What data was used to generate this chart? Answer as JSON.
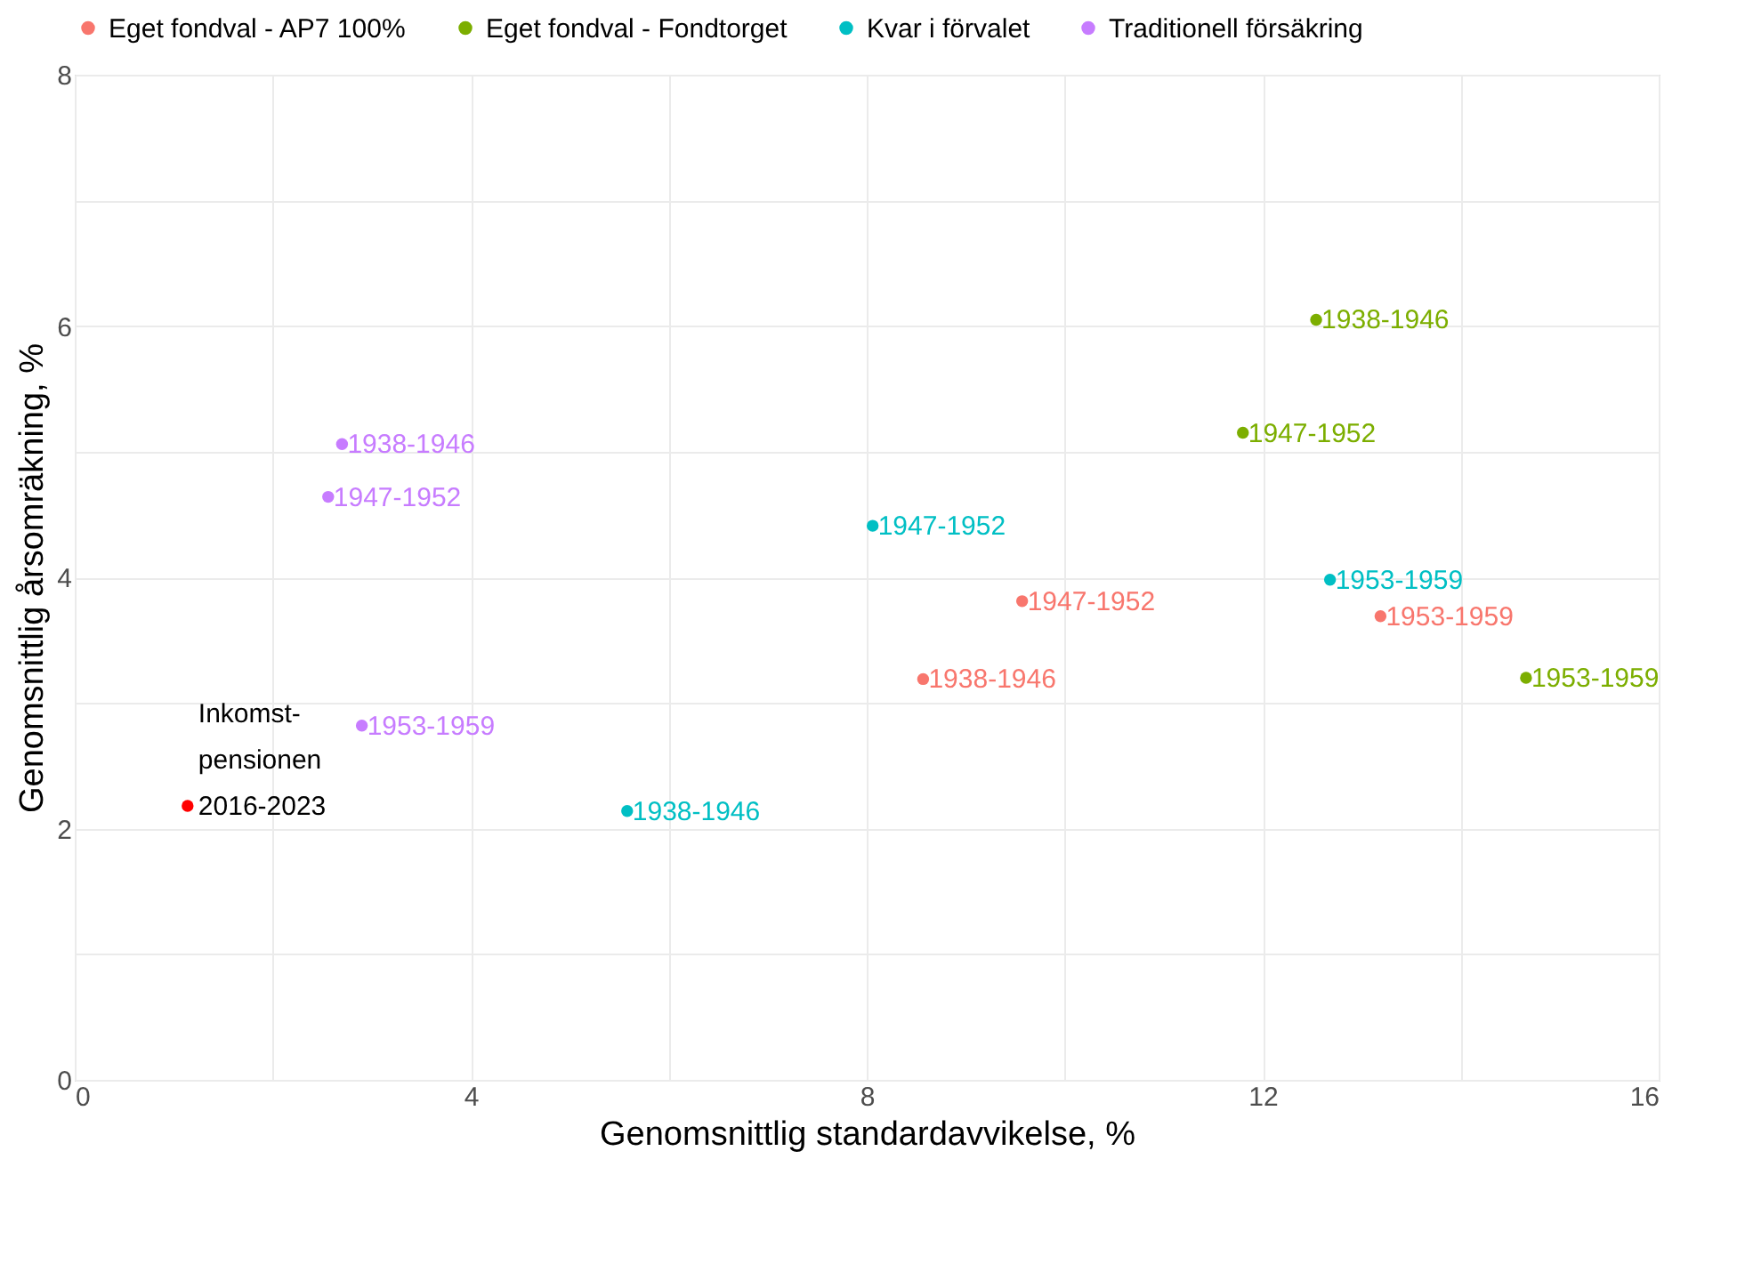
{
  "chart_data": {
    "type": "scatter",
    "xlabel": "Genomsnittlig standardavvikelse, %",
    "ylabel": "Genomsnittlig årsomräkning, %",
    "xlim": [
      0,
      16
    ],
    "ylim": [
      0,
      8
    ],
    "xticks": [
      0,
      {
        "value": 2,
        "label": null
      },
      4,
      {
        "value": 6,
        "label": null
      },
      8,
      {
        "value": 10,
        "label": null
      },
      12,
      {
        "value": 14,
        "label": null
      },
      16
    ],
    "yticks": [
      0,
      {
        "value": 1,
        "label": null
      },
      2,
      {
        "value": 3,
        "label": null
      },
      4,
      {
        "value": 5,
        "label": null
      },
      6,
      {
        "value": 7,
        "label": null
      },
      8
    ],
    "grid": true,
    "legend": "top",
    "marker": "circle",
    "series": [
      {
        "name": "Eget fondval - AP7 100%",
        "color": "#f8766d",
        "x": [
          8.57,
          9.57,
          13.19
        ],
        "values": [
          3.19,
          3.81,
          3.69
        ],
        "value_labels": [
          "1938-1946",
          "1947-1952",
          "1953-1959"
        ]
      },
      {
        "name": "Eget fondval - Fondtorget",
        "color": "#7cae00",
        "x": [
          12.54,
          11.8,
          14.66
        ],
        "values": [
          6.05,
          5.15,
          3.2
        ],
        "value_labels": [
          "1938-1946",
          "1947-1952",
          "1953-1959"
        ]
      },
      {
        "name": "Kvar i förvalet",
        "color": "#00bfc4",
        "x": [
          5.58,
          8.06,
          12.68
        ],
        "values": [
          2.14,
          4.41,
          3.98
        ],
        "value_labels": [
          "1938-1946",
          "1947-1952",
          "1953-1959"
        ]
      },
      {
        "name": "Traditionell försäkring",
        "color": "#c77cff",
        "x": [
          2.7,
          2.56,
          2.9
        ],
        "values": [
          5.06,
          4.64,
          2.82
        ],
        "value_labels": [
          "1938-1946",
          "1947-1952",
          "1953-1959"
        ]
      },
      {
        "color": "#ff0000",
        "x": [
          1.14
        ],
        "values": [
          2.18
        ]
      }
    ],
    "annotations": [
      {
        "text": "Inkomst-\npensionen\n2016-2023",
        "x": 1.14,
        "y": 2.18
      }
    ]
  }
}
